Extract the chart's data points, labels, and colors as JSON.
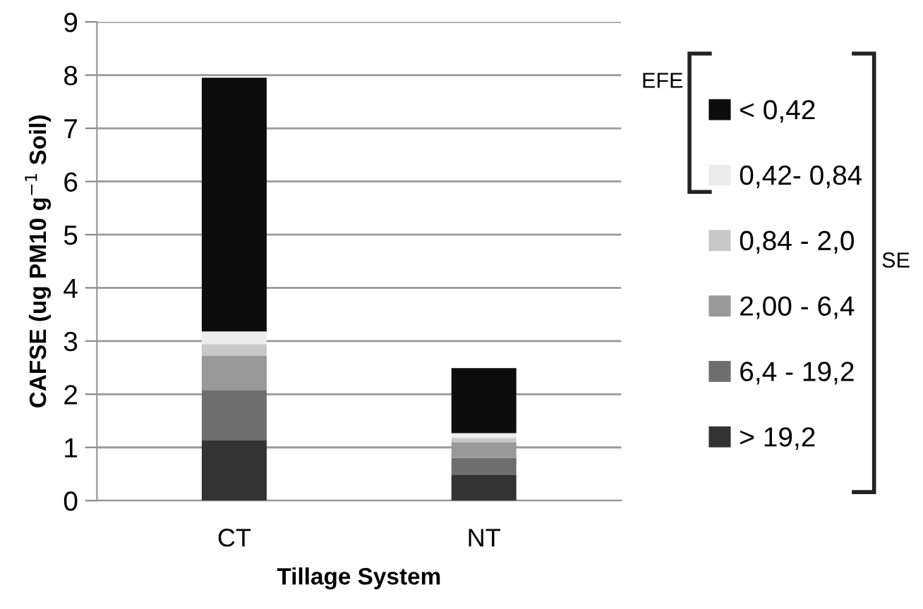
{
  "chart_data": {
    "type": "bar",
    "stacked": true,
    "categories": [
      "CT",
      "NT"
    ],
    "xlabel": "Tillage System",
    "ylabel": "CAFSE (ug PM10 g$^{−1}$ Soil)",
    "series": [
      {
        "name": "> 19,2",
        "color": "#333333",
        "values": [
          1.13,
          0.48
        ]
      },
      {
        "name": "6,4 - 19,2",
        "color": "#6e6e6e",
        "values": [
          0.95,
          0.32
        ]
      },
      {
        "name": "2,00 - 6,4",
        "color": "#999999",
        "values": [
          0.64,
          0.3
        ]
      },
      {
        "name": "0,84 - 2,0",
        "color": "#c8c8c8",
        "values": [
          0.22,
          0.08
        ]
      },
      {
        "name": "0,42- 0,84",
        "color": "#ececec",
        "values": [
          0.24,
          0.09
        ]
      },
      {
        "name": "< 0,42",
        "color": "#0d0d0d",
        "values": [
          4.77,
          1.22
        ]
      }
    ],
    "ylim": [
      0,
      9
    ],
    "yticks": [
      0,
      1,
      2,
      3,
      4,
      5,
      6,
      7,
      8,
      9
    ],
    "grid": "y",
    "legend": "right",
    "annotations": [
      "EFE",
      "SE"
    ]
  }
}
